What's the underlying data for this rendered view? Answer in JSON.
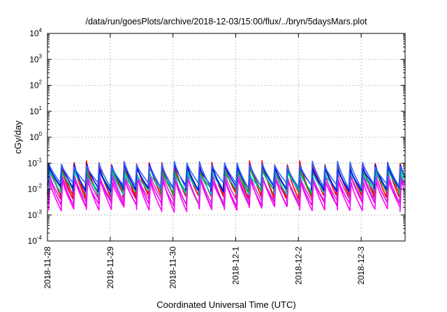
{
  "chart_data": {
    "type": "line",
    "title": "/data/run/goesPlots/archive/2018-12-03/15:00/flux/../bryn/5daysMars.plot",
    "xlabel": "Coordinated Universal Time (UTC)",
    "ylabel": "cGy/day",
    "yscale": "log",
    "ylim": [
      0.0001,
      10000
    ],
    "xlim_days": [
      0,
      5.7
    ],
    "grid": true,
    "y_ticks": [
      {
        "base": "10",
        "exp": "-4"
      },
      {
        "base": "10",
        "exp": "-3"
      },
      {
        "base": "10",
        "exp": "-2"
      },
      {
        "base": "10",
        "exp": "-1"
      },
      {
        "base": "10",
        "exp": "0"
      },
      {
        "base": "10",
        "exp": "1"
      },
      {
        "base": "10",
        "exp": "2"
      },
      {
        "base": "10",
        "exp": "3"
      },
      {
        "base": "10",
        "exp": "4"
      }
    ],
    "x_ticks": [
      "2018-11-28",
      "2018-11-29",
      "2018-11-30",
      "2018-12-1",
      "2018-12-2",
      "2018-12-3"
    ],
    "cycles_per_day": 5,
    "series": [
      {
        "color": "#ff00ff",
        "peak": 0.022,
        "trough": 0.0018,
        "lag": 0.02
      },
      {
        "color": "#ee00ee",
        "peak": 0.028,
        "trough": 0.0025,
        "lag": 0.015
      },
      {
        "color": "#cc33cc",
        "peak": 0.035,
        "trough": 0.0035,
        "lag": 0.012
      },
      {
        "color": "#ff0000",
        "peak": 0.1,
        "trough": 0.006,
        "lag": 0.0
      },
      {
        "color": "#d0202a",
        "peak": 0.085,
        "trough": 0.007,
        "lag": 0.004
      },
      {
        "color": "#00cccc",
        "peak": 0.045,
        "trough": 0.008,
        "lag": 0.01
      },
      {
        "color": "#00aa44",
        "peak": 0.055,
        "trough": 0.009,
        "lag": 0.008
      },
      {
        "color": "#0000ff",
        "peak": 0.075,
        "trough": 0.011,
        "lag": 0.006
      },
      {
        "color": "#3366ff",
        "peak": 0.095,
        "trough": 0.014,
        "lag": 0.003
      }
    ],
    "colors": {
      "grid": "#b0b0b0",
      "frame": "#000000"
    }
  }
}
